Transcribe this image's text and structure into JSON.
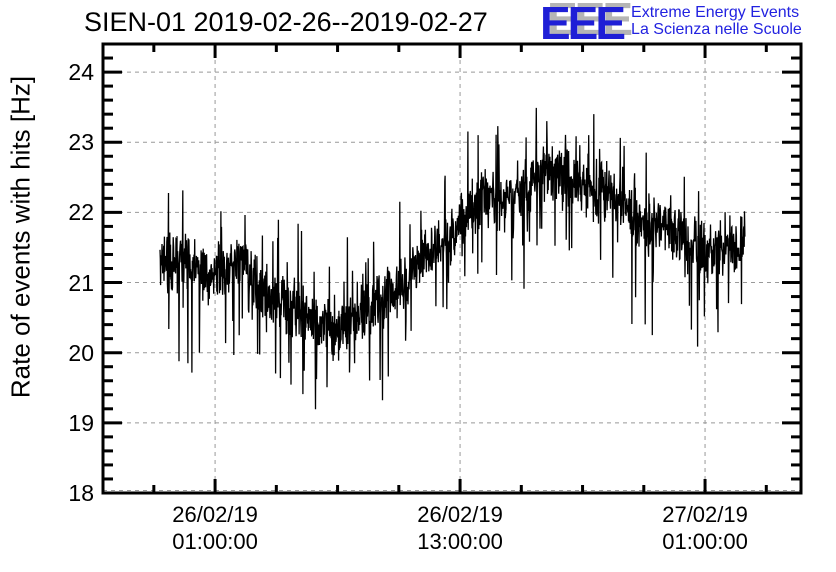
{
  "logo": {
    "acronym": "EEE",
    "line1": "Extreme Energy Events",
    "line2": "La Scienza nelle Scuole",
    "color": "#1f1fd6",
    "text_color": "#2222e0",
    "shadow_color": "#b5b5b5"
  },
  "chart_data": {
    "type": "line",
    "title": "SIEN-01 2019-02-26--2019-02-27",
    "ylabel": "Rate of events with hits [Hz]",
    "xlabel": "",
    "ylim": [
      18,
      24.4
    ],
    "y_major_ticks": [
      {
        "value": 24,
        "label": "24"
      },
      {
        "value": 23,
        "label": "23"
      },
      {
        "value": 22,
        "label": "22"
      },
      {
        "value": 21,
        "label": "21"
      },
      {
        "value": 20,
        "label": "20"
      },
      {
        "value": 19,
        "label": "19"
      },
      {
        "value": 18,
        "label": "18"
      }
    ],
    "y_minor_step": 0.2,
    "xlim_hours": [
      0,
      34.19
    ],
    "x_major_ticks": [
      {
        "hour": 5.49,
        "line1": "26/02/19",
        "line2": "01:00:00"
      },
      {
        "hour": 17.49,
        "line1": "26/02/19",
        "line2": "13:00:00"
      },
      {
        "hour": 29.49,
        "line1": "27/02/19",
        "line2": "01:00:00"
      }
    ],
    "x_minor_step_hours": 3,
    "grid": {
      "on": true,
      "color": "#999999",
      "dash": "4 4"
    },
    "axis_color": "#000000",
    "legend": "none",
    "series": {
      "name": "rate-of-events-with-hits",
      "color": "#000000",
      "start_hour": 2.79,
      "end_hour": 31.44,
      "sample_minutes": 1,
      "trend": [
        [
          2.79,
          21.3
        ],
        [
          3.5,
          21.28
        ],
        [
          4.5,
          21.22
        ],
        [
          5.49,
          21.18
        ],
        [
          6.5,
          21.12
        ],
        [
          7.2,
          21.05
        ],
        [
          7.9,
          20.95
        ],
        [
          8.7,
          20.8
        ],
        [
          9.5,
          20.62
        ],
        [
          10.3,
          20.5
        ],
        [
          11.0,
          20.42
        ],
        [
          11.9,
          20.35
        ],
        [
          12.6,
          20.42
        ],
        [
          13.3,
          20.62
        ],
        [
          14.1,
          20.85
        ],
        [
          15.0,
          21.1
        ],
        [
          15.9,
          21.4
        ],
        [
          16.8,
          21.7
        ],
        [
          17.5,
          21.95
        ],
        [
          18.3,
          22.1
        ],
        [
          19.2,
          22.2
        ],
        [
          20.1,
          22.28
        ],
        [
          21.0,
          22.38
        ],
        [
          21.9,
          22.48
        ],
        [
          22.9,
          22.55
        ],
        [
          23.8,
          22.45
        ],
        [
          24.6,
          22.3
        ],
        [
          25.5,
          22.1
        ],
        [
          26.4,
          21.9
        ],
        [
          27.3,
          21.72
        ],
        [
          28.2,
          21.6
        ],
        [
          29.1,
          21.55
        ],
        [
          30.0,
          21.5
        ],
        [
          30.8,
          21.52
        ],
        [
          31.44,
          21.6
        ]
      ],
      "noise": {
        "triangular_halfwidth": 0.5,
        "spike_probability": 0.11,
        "spike_min": 0.2,
        "spike_extra_up": 0.8,
        "spike_extra_down": 1.15,
        "seed": 20190226
      },
      "observed_min": 18.5,
      "observed_max": 23.85
    }
  }
}
